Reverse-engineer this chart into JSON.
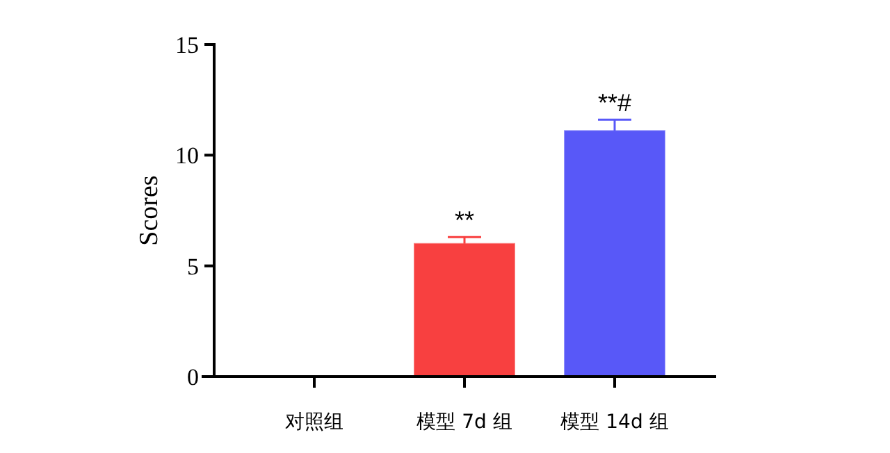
{
  "chart_data": {
    "type": "bar",
    "ylabel": "Scores",
    "categories": [
      "对照组",
      "模型 7d 组",
      "模型 14d 组"
    ],
    "values": [
      0,
      6.0,
      11.1
    ],
    "errors": [
      null,
      0.3,
      0.5
    ],
    "colors": [
      "#f84040",
      "#f84040",
      "#5858f8"
    ],
    "ylim": [
      0,
      15
    ],
    "yticks": [
      0,
      5,
      10,
      15
    ],
    "grid": false,
    "annotations": [
      {
        "text": "**",
        "x": "模型 7d 组",
        "y": 6.3
      },
      {
        "text": "**#",
        "x": "模型 14d 组",
        "y": 11.6
      }
    ]
  }
}
